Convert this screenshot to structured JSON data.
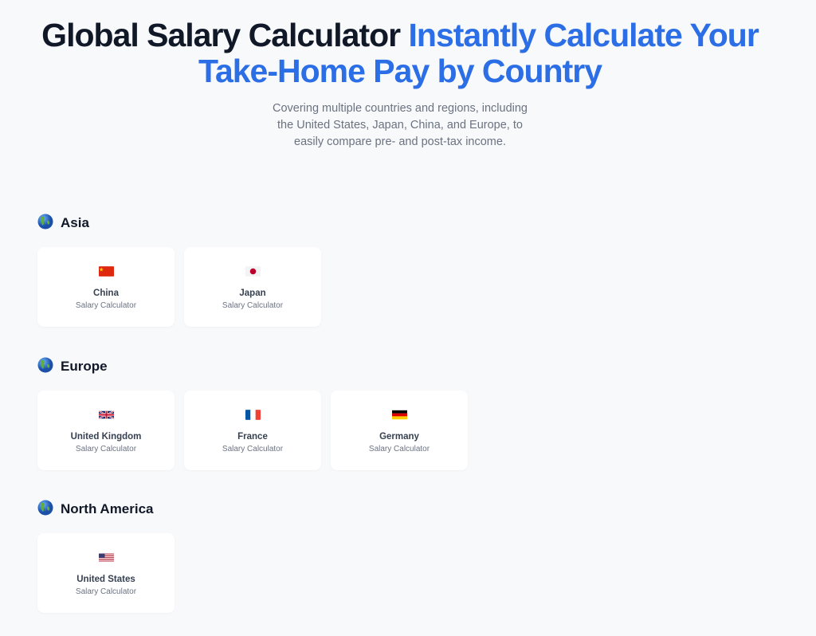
{
  "hero": {
    "title_main": "Global Salary Calculator",
    "title_accent": "Instantly Calculate Your Take-Home Pay by Country",
    "subtitle": "Covering multiple countries and regions, including the United States, Japan, China, and Europe, to easily compare pre- and post-tax income.",
    "accent_color": "#2b6ee6"
  },
  "regions": [
    {
      "name": "Asia",
      "icon": "globe-asia-icon",
      "countries": [
        {
          "name": "China",
          "label": "Salary Calculator",
          "flag": "cn"
        },
        {
          "name": "Japan",
          "label": "Salary Calculator",
          "flag": "jp"
        }
      ]
    },
    {
      "name": "Europe",
      "icon": "globe-europe-icon",
      "countries": [
        {
          "name": "United Kingdom",
          "label": "Salary Calculator",
          "flag": "gb"
        },
        {
          "name": "France",
          "label": "Salary Calculator",
          "flag": "fr"
        },
        {
          "name": "Germany",
          "label": "Salary Calculator",
          "flag": "de"
        }
      ]
    },
    {
      "name": "North America",
      "icon": "globe-americas-icon",
      "countries": [
        {
          "name": "United States",
          "label": "Salary Calculator",
          "flag": "us"
        }
      ]
    }
  ]
}
